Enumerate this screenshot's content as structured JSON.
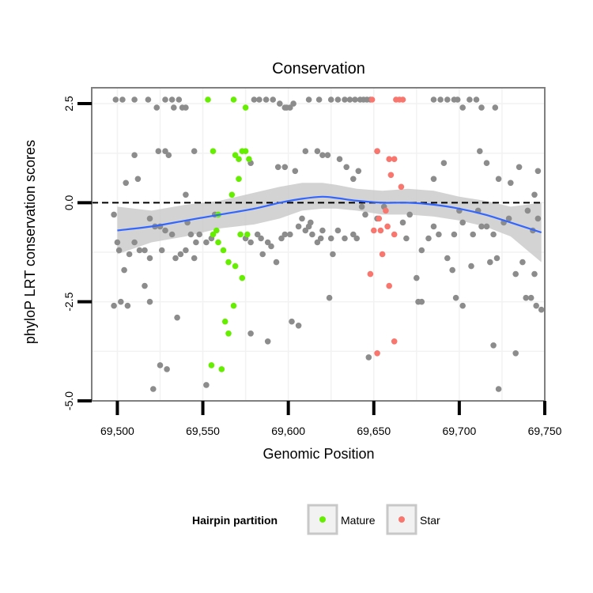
{
  "chart_data": {
    "type": "scatter",
    "title": "Conservation",
    "xlabel": "Genomic Position",
    "ylabel": "phyloP LRT conservation scores",
    "xlim": [
      69485,
      69750
    ],
    "ylim": [
      -5.0,
      2.9
    ],
    "x_ticks": [
      69500,
      69550,
      69600,
      69650,
      69700,
      69750
    ],
    "x_tick_labels": [
      "69,500",
      "69,550",
      "69,600",
      "69,650",
      "69,700",
      "69,750"
    ],
    "y_ticks": [
      -5.0,
      -2.5,
      0.0,
      2.5
    ],
    "y_tick_labels": [
      "-5.0",
      "-2.5",
      "0.0",
      "2.5"
    ],
    "reference_line_y": 0,
    "grid": true,
    "legend": {
      "title": "Hairpin partition",
      "placement": "bottom",
      "entries": [
        {
          "label": "Mature",
          "color": "#66ee00"
        },
        {
          "label": "Star",
          "color": "#f8766d"
        }
      ]
    },
    "colors": {
      "other": "#8c8c8c",
      "mature": "#66ee00",
      "star": "#f8766d",
      "smooth": "#3366ff",
      "ribbon": "#c8c8c8",
      "panel_border": "#7f7f7f"
    },
    "series": [
      {
        "group": "other",
        "points": [
          [
            69499,
            2.6
          ],
          [
            69503,
            2.6
          ],
          [
            69510,
            2.6
          ],
          [
            69518,
            2.6
          ],
          [
            69523,
            2.4
          ],
          [
            69528,
            2.6
          ],
          [
            69532,
            2.6
          ],
          [
            69533,
            2.4
          ],
          [
            69536,
            2.6
          ],
          [
            69538,
            2.4
          ],
          [
            69540,
            2.4
          ],
          [
            69580,
            2.6
          ],
          [
            69583,
            2.6
          ],
          [
            69587,
            2.6
          ],
          [
            69591,
            2.6
          ],
          [
            69595,
            2.5
          ],
          [
            69598,
            2.4
          ],
          [
            69599,
            2.4
          ],
          [
            69601,
            2.4
          ],
          [
            69603,
            2.5
          ],
          [
            69612,
            2.6
          ],
          [
            69618,
            2.6
          ],
          [
            69625,
            2.6
          ],
          [
            69629,
            2.6
          ],
          [
            69633,
            2.6
          ],
          [
            69636,
            2.6
          ],
          [
            69639,
            2.6
          ],
          [
            69642,
            2.6
          ],
          [
            69644,
            2.6
          ],
          [
            69646,
            2.6
          ],
          [
            69648,
            2.6
          ],
          [
            69685,
            2.6
          ],
          [
            69689,
            2.6
          ],
          [
            69693,
            2.6
          ],
          [
            69697,
            2.6
          ],
          [
            69699,
            2.6
          ],
          [
            69702,
            2.4
          ],
          [
            69706,
            2.6
          ],
          [
            69710,
            2.6
          ],
          [
            69713,
            2.4
          ],
          [
            69721,
            2.4
          ],
          [
            69510,
            1.2
          ],
          [
            69505,
            0.5
          ],
          [
            69512,
            0.6
          ],
          [
            69524,
            1.3
          ],
          [
            69528,
            1.3
          ],
          [
            69530,
            1.2
          ],
          [
            69540,
            0.2
          ],
          [
            69545,
            1.3
          ],
          [
            69578,
            1.0
          ],
          [
            69594,
            0.9
          ],
          [
            69598,
            0.9
          ],
          [
            69604,
            0.8
          ],
          [
            69610,
            1.3
          ],
          [
            69617,
            1.3
          ],
          [
            69620,
            1.2
          ],
          [
            69623,
            1.2
          ],
          [
            69630,
            1.1
          ],
          [
            69634,
            0.9
          ],
          [
            69638,
            0.6
          ],
          [
            69641,
            0.8
          ],
          [
            69652,
            1.3
          ],
          [
            69685,
            0.6
          ],
          [
            69691,
            1.0
          ],
          [
            69712,
            1.3
          ],
          [
            69716,
            1.0
          ],
          [
            69723,
            0.6
          ],
          [
            69730,
            0.5
          ],
          [
            69735,
            0.9
          ],
          [
            69746,
            0.8
          ],
          [
            69744,
            0.2
          ],
          [
            69498,
            -0.3
          ],
          [
            69500,
            -1.0
          ],
          [
            69501,
            -1.2
          ],
          [
            69504,
            -1.7
          ],
          [
            69507,
            -1.3
          ],
          [
            69510,
            -1.0
          ],
          [
            69513,
            -1.2
          ],
          [
            69516,
            -1.2
          ],
          [
            69519,
            -0.4
          ],
          [
            69519,
            -1.4
          ],
          [
            69522,
            -0.6
          ],
          [
            69525,
            -0.6
          ],
          [
            69528,
            -0.7
          ],
          [
            69532,
            -0.8
          ],
          [
            69534,
            -1.4
          ],
          [
            69537,
            -1.3
          ],
          [
            69540,
            -1.2
          ],
          [
            69541,
            -0.5
          ],
          [
            69543,
            -0.8
          ],
          [
            69545,
            -1.4
          ],
          [
            69546,
            -1.0
          ],
          [
            69548,
            -0.8
          ],
          [
            69552,
            -1.0
          ],
          [
            69555,
            -0.9
          ],
          [
            69557,
            -0.3
          ],
          [
            69575,
            -0.9
          ],
          [
            69578,
            -1.0
          ],
          [
            69582,
            -0.8
          ],
          [
            69584,
            -0.9
          ],
          [
            69585,
            -1.3
          ],
          [
            69588,
            -1.0
          ],
          [
            69590,
            -1.1
          ],
          [
            69593,
            -1.5
          ],
          [
            69596,
            -0.9
          ],
          [
            69598,
            -0.8
          ],
          [
            69601,
            -0.8
          ],
          [
            69606,
            -0.6
          ],
          [
            69608,
            -0.4
          ],
          [
            69610,
            -0.7
          ],
          [
            69612,
            -0.6
          ],
          [
            69613,
            -0.5
          ],
          [
            69614,
            -0.8
          ],
          [
            69617,
            -1.0
          ],
          [
            69619,
            -0.9
          ],
          [
            69620,
            -0.7
          ],
          [
            69625,
            -0.9
          ],
          [
            69626,
            -1.3
          ],
          [
            69629,
            -0.7
          ],
          [
            69633,
            -0.9
          ],
          [
            69638,
            -0.8
          ],
          [
            69640,
            -0.9
          ],
          [
            69643,
            -0.1
          ],
          [
            69645,
            -0.3
          ],
          [
            69652,
            -0.4
          ],
          [
            69656,
            -0.1
          ],
          [
            69667,
            -0.5
          ],
          [
            69669,
            -0.9
          ],
          [
            69671,
            -0.3
          ],
          [
            69675,
            -1.9
          ],
          [
            69678,
            -1.2
          ],
          [
            69682,
            -0.9
          ],
          [
            69685,
            -0.6
          ],
          [
            69688,
            -0.8
          ],
          [
            69693,
            -1.4
          ],
          [
            69697,
            -0.8
          ],
          [
            69700,
            -0.2
          ],
          [
            69702,
            -0.5
          ],
          [
            69708,
            -0.8
          ],
          [
            69711,
            -0.2
          ],
          [
            69713,
            -0.6
          ],
          [
            69716,
            -0.6
          ],
          [
            69720,
            -0.8
          ],
          [
            69722,
            -1.4
          ],
          [
            69726,
            -0.5
          ],
          [
            69729,
            -0.4
          ],
          [
            69733,
            -1.8
          ],
          [
            69737,
            -1.5
          ],
          [
            69740,
            -0.2
          ],
          [
            69743,
            -0.7
          ],
          [
            69746,
            -0.4
          ],
          [
            69744,
            -1.8
          ],
          [
            69526,
            -1.2
          ],
          [
            69498,
            -2.6
          ],
          [
            69502,
            -2.5
          ],
          [
            69506,
            -2.6
          ],
          [
            69516,
            -2.1
          ],
          [
            69519,
            -2.5
          ],
          [
            69521,
            -4.7
          ],
          [
            69525,
            -4.1
          ],
          [
            69529,
            -4.2
          ],
          [
            69535,
            -2.9
          ],
          [
            69552,
            -4.6
          ],
          [
            69578,
            -3.3
          ],
          [
            69588,
            -3.5
          ],
          [
            69602,
            -3.0
          ],
          [
            69606,
            -3.1
          ],
          [
            69624,
            -2.4
          ],
          [
            69647,
            -3.9
          ],
          [
            69676,
            -2.5
          ],
          [
            69678,
            -2.5
          ],
          [
            69698,
            -2.4
          ],
          [
            69702,
            -2.6
          ],
          [
            69720,
            -3.6
          ],
          [
            69723,
            -4.7
          ],
          [
            69733,
            -3.8
          ],
          [
            69739,
            -2.4
          ],
          [
            69742,
            -2.4
          ],
          [
            69745,
            -2.6
          ],
          [
            69748,
            -2.7
          ],
          [
            69718,
            -1.5
          ],
          [
            69707,
            -1.6
          ],
          [
            69696,
            -1.7
          ]
        ]
      },
      {
        "group": "mature",
        "points": [
          [
            69553,
            2.6
          ],
          [
            69568,
            2.6
          ],
          [
            69575,
            2.4
          ],
          [
            69556,
            1.3
          ],
          [
            69569,
            1.2
          ],
          [
            69571,
            1.1
          ],
          [
            69573,
            1.3
          ],
          [
            69575,
            1.3
          ],
          [
            69577,
            1.1
          ],
          [
            69571,
            0.6
          ],
          [
            69567,
            0.2
          ],
          [
            69559,
            -0.3
          ],
          [
            69556,
            -0.8
          ],
          [
            69558,
            -0.7
          ],
          [
            69572,
            -0.8
          ],
          [
            69576,
            -0.8
          ],
          [
            69559,
            -1.0
          ],
          [
            69562,
            -1.2
          ],
          [
            69565,
            -1.5
          ],
          [
            69569,
            -1.6
          ],
          [
            69573,
            -1.9
          ],
          [
            69568,
            -2.6
          ],
          [
            69563,
            -3.0
          ],
          [
            69565,
            -3.3
          ],
          [
            69555,
            -4.1
          ],
          [
            69561,
            -4.2
          ]
        ]
      },
      {
        "group": "star",
        "points": [
          [
            69649,
            2.6
          ],
          [
            69663,
            2.6
          ],
          [
            69665,
            2.6
          ],
          [
            69667,
            2.6
          ],
          [
            69652,
            1.3
          ],
          [
            69659,
            1.1
          ],
          [
            69662,
            1.1
          ],
          [
            69660,
            0.7
          ],
          [
            69666,
            0.4
          ],
          [
            69653,
            -0.4
          ],
          [
            69657,
            -0.2
          ],
          [
            69650,
            -0.7
          ],
          [
            69654,
            -0.7
          ],
          [
            69658,
            -0.6
          ],
          [
            69662,
            -0.8
          ],
          [
            69655,
            -1.3
          ],
          [
            69648,
            -1.8
          ],
          [
            69659,
            -2.1
          ],
          [
            69662,
            -3.5
          ],
          [
            69652,
            -3.8
          ]
        ]
      }
    ],
    "smooth_fit": {
      "x": [
        69500,
        69520,
        69540,
        69560,
        69580,
        69595,
        69608,
        69620,
        69628,
        69640,
        69655,
        69670,
        69685,
        69700,
        69715,
        69730,
        69748
      ],
      "y": [
        -0.7,
        -0.6,
        -0.45,
        -0.3,
        -0.15,
        0.0,
        0.1,
        0.15,
        0.12,
        0.05,
        0.0,
        0.0,
        -0.05,
        -0.15,
        -0.3,
        -0.5,
        -0.75
      ],
      "lower": [
        -1.3,
        -1.0,
        -0.85,
        -0.65,
        -0.55,
        -0.4,
        -0.2,
        -0.15,
        -0.15,
        -0.2,
        -0.3,
        -0.3,
        -0.35,
        -0.45,
        -0.6,
        -0.85,
        -1.5
      ],
      "upper": [
        -0.1,
        -0.2,
        -0.05,
        0.05,
        0.25,
        0.4,
        0.5,
        0.5,
        0.45,
        0.35,
        0.3,
        0.35,
        0.3,
        0.15,
        0.05,
        -0.1,
        0.0
      ]
    }
  }
}
